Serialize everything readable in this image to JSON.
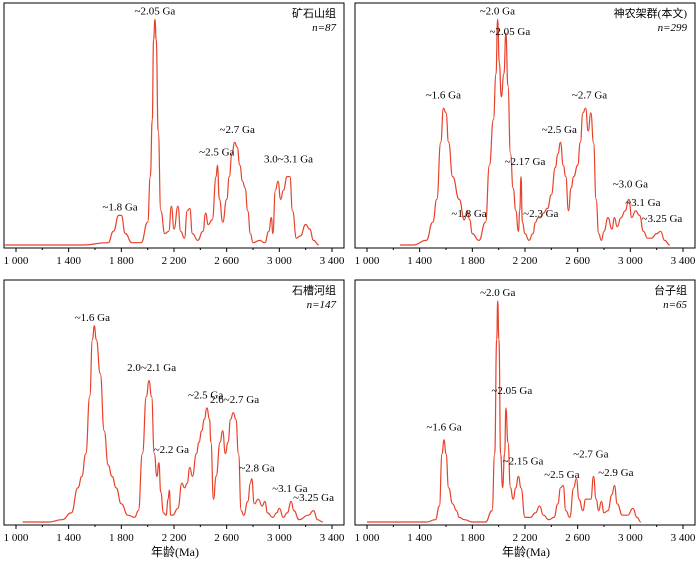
{
  "x_axis_label": "年龄(Ma)",
  "chart_data": [
    {
      "type": "area",
      "title": "矿石山组",
      "n": "n=87",
      "xlim": [
        1000,
        3400
      ],
      "xticks": [
        "1 000",
        "1 400",
        "1 800",
        "2 200",
        "2 600",
        "3 000",
        "3 400"
      ],
      "peaks": [
        [
          900,
          0
        ],
        [
          1500,
          0
        ],
        [
          1700,
          0.01
        ],
        [
          1740,
          0.06
        ],
        [
          1780,
          0.13
        ],
        [
          1800,
          0.13
        ],
        [
          1830,
          0.05
        ],
        [
          1880,
          0.01
        ],
        [
          1950,
          0.01
        ],
        [
          2000,
          0.1
        ],
        [
          2020,
          0.3
        ],
        [
          2035,
          0.55
        ],
        [
          2045,
          0.9
        ],
        [
          2055,
          0.99
        ],
        [
          2065,
          0.9
        ],
        [
          2080,
          0.5
        ],
        [
          2100,
          0.15
        ],
        [
          2130,
          0.05
        ],
        [
          2160,
          0.06
        ],
        [
          2180,
          0.17
        ],
        [
          2200,
          0.07
        ],
        [
          2230,
          0.17
        ],
        [
          2250,
          0.06
        ],
        [
          2280,
          0.03
        ],
        [
          2300,
          0.15
        ],
        [
          2320,
          0.16
        ],
        [
          2340,
          0.05
        ],
        [
          2380,
          0.02
        ],
        [
          2420,
          0.06
        ],
        [
          2440,
          0.14
        ],
        [
          2460,
          0.09
        ],
        [
          2490,
          0.11
        ],
        [
          2520,
          0.3
        ],
        [
          2530,
          0.35
        ],
        [
          2545,
          0.2
        ],
        [
          2570,
          0.1
        ],
        [
          2600,
          0.2
        ],
        [
          2620,
          0.3
        ],
        [
          2640,
          0.4
        ],
        [
          2660,
          0.45
        ],
        [
          2680,
          0.43
        ],
        [
          2700,
          0.35
        ],
        [
          2720,
          0.28
        ],
        [
          2740,
          0.25
        ],
        [
          2760,
          0.15
        ],
        [
          2780,
          0.05
        ],
        [
          2800,
          0.01
        ],
        [
          2850,
          0.02
        ],
        [
          2890,
          0.01
        ],
        [
          2920,
          0.06
        ],
        [
          2940,
          0.12
        ],
        [
          2950,
          0.05
        ],
        [
          2970,
          0.24
        ],
        [
          2990,
          0.28
        ],
        [
          3010,
          0.2
        ],
        [
          3030,
          0.24
        ],
        [
          3060,
          0.3
        ],
        [
          3080,
          0.3
        ],
        [
          3100,
          0.15
        ],
        [
          3130,
          0.03
        ],
        [
          3160,
          0.04
        ],
        [
          3200,
          0.09
        ],
        [
          3230,
          0.07
        ],
        [
          3260,
          0.02
        ],
        [
          3300,
          0
        ]
      ],
      "peak_labels": [
        {
          "text": "~2.05 Ga",
          "x": 2055,
          "y": 0.99
        },
        {
          "text": "~2.7 Ga",
          "x": 2680,
          "y": 0.47
        },
        {
          "text": "~2.5 Ga",
          "x": 2525,
          "y": 0.37
        },
        {
          "text": "3.0~3.1 Ga",
          "x": 3070,
          "y": 0.34
        },
        {
          "text": "~1.8 Ga",
          "x": 1790,
          "y": 0.13
        }
      ]
    },
    {
      "type": "area",
      "title": "神农架群(本文)",
      "n": "n=299",
      "xlim": [
        1000,
        3400
      ],
      "xticks": [
        "1 000",
        "1 400",
        "1 800",
        "2 200",
        "2 600",
        "3 000",
        "3 400"
      ],
      "peaks": [
        [
          1250,
          0
        ],
        [
          1350,
          0
        ],
        [
          1450,
          0.02
        ],
        [
          1500,
          0.1
        ],
        [
          1530,
          0.2
        ],
        [
          1560,
          0.45
        ],
        [
          1580,
          0.6
        ],
        [
          1600,
          0.58
        ],
        [
          1620,
          0.45
        ],
        [
          1650,
          0.3
        ],
        [
          1700,
          0.2
        ],
        [
          1740,
          0.11
        ],
        [
          1760,
          0.15
        ],
        [
          1780,
          0.11
        ],
        [
          1800,
          0.05
        ],
        [
          1850,
          0.02
        ],
        [
          1900,
          0.1
        ],
        [
          1930,
          0.35
        ],
        [
          1960,
          0.55
        ],
        [
          1980,
          0.75
        ],
        [
          1992,
          0.99
        ],
        [
          2005,
          0.8
        ],
        [
          2020,
          0.65
        ],
        [
          2040,
          0.75
        ],
        [
          2055,
          0.93
        ],
        [
          2070,
          0.7
        ],
        [
          2090,
          0.4
        ],
        [
          2110,
          0.25
        ],
        [
          2130,
          0.15
        ],
        [
          2150,
          0.06
        ],
        [
          2160,
          0.15
        ],
        [
          2170,
          0.3
        ],
        [
          2180,
          0.1
        ],
        [
          2200,
          0.05
        ],
        [
          2230,
          0.02
        ],
        [
          2260,
          0.05
        ],
        [
          2280,
          0.1
        ],
        [
          2300,
          0.12
        ],
        [
          2320,
          0.12
        ],
        [
          2340,
          0.14
        ],
        [
          2370,
          0.16
        ],
        [
          2400,
          0.22
        ],
        [
          2430,
          0.34
        ],
        [
          2450,
          0.4
        ],
        [
          2470,
          0.45
        ],
        [
          2490,
          0.35
        ],
        [
          2510,
          0.3
        ],
        [
          2530,
          0.15
        ],
        [
          2550,
          0.25
        ],
        [
          2570,
          0.3
        ],
        [
          2600,
          0.35
        ],
        [
          2620,
          0.45
        ],
        [
          2640,
          0.58
        ],
        [
          2660,
          0.6
        ],
        [
          2680,
          0.5
        ],
        [
          2700,
          0.58
        ],
        [
          2720,
          0.45
        ],
        [
          2740,
          0.2
        ],
        [
          2760,
          0.05
        ],
        [
          2780,
          0.02
        ],
        [
          2800,
          0.06
        ],
        [
          2830,
          0.12
        ],
        [
          2860,
          0.07
        ],
        [
          2880,
          0.12
        ],
        [
          2900,
          0.08
        ],
        [
          2930,
          0.12
        ],
        [
          2960,
          0.15
        ],
        [
          2990,
          0.2
        ],
        [
          3010,
          0.12
        ],
        [
          3040,
          0.15
        ],
        [
          3070,
          0.13
        ],
        [
          3100,
          0.06
        ],
        [
          3130,
          0.03
        ],
        [
          3160,
          0.03
        ],
        [
          3200,
          0.05
        ],
        [
          3230,
          0.06
        ],
        [
          3260,
          0.02
        ],
        [
          3300,
          0
        ]
      ],
      "peak_labels": [
        {
          "text": "~2.0 Ga",
          "x": 1990,
          "y": 0.99
        },
        {
          "text": "~2.05 Ga",
          "x": 2085,
          "y": 0.9
        },
        {
          "text": "~1.6 Ga",
          "x": 1580,
          "y": 0.62
        },
        {
          "text": "~2.7 Ga",
          "x": 2690,
          "y": 0.62
        },
        {
          "text": "~2.5 Ga",
          "x": 2460,
          "y": 0.47
        },
        {
          "text": "~2.17 Ga",
          "x": 2200,
          "y": 0.33
        },
        {
          "text": "~3.0 Ga",
          "x": 3000,
          "y": 0.23
        },
        {
          "text": "~1.8 Ga",
          "x": 1775,
          "y": 0.1
        },
        {
          "text": "~2.3 Ga",
          "x": 2320,
          "y": 0.1
        },
        {
          "text": "~3.1 Ga",
          "x": 3095,
          "y": 0.15
        },
        {
          "text": "~3.25 Ga",
          "x": 3240,
          "y": 0.08
        }
      ]
    },
    {
      "type": "area",
      "title": "石槽河组",
      "n": "n=147",
      "xlim": [
        1000,
        3400
      ],
      "xticks": [
        "1 000",
        "1 400",
        "1 800",
        "2 200",
        "2 600",
        "3 000",
        "3 400"
      ],
      "peaks": [
        [
          1050,
          0
        ],
        [
          1250,
          0
        ],
        [
          1350,
          0.01
        ],
        [
          1420,
          0.04
        ],
        [
          1470,
          0.15
        ],
        [
          1500,
          0.2
        ],
        [
          1530,
          0.3
        ],
        [
          1560,
          0.55
        ],
        [
          1580,
          0.8
        ],
        [
          1595,
          0.86
        ],
        [
          1610,
          0.8
        ],
        [
          1640,
          0.65
        ],
        [
          1670,
          0.4
        ],
        [
          1700,
          0.25
        ],
        [
          1730,
          0.2
        ],
        [
          1760,
          0.15
        ],
        [
          1800,
          0.08
        ],
        [
          1850,
          0.03
        ],
        [
          1900,
          0.02
        ],
        [
          1930,
          0.05
        ],
        [
          1960,
          0.3
        ],
        [
          1990,
          0.55
        ],
        [
          2010,
          0.62
        ],
        [
          2030,
          0.55
        ],
        [
          2050,
          0.3
        ],
        [
          2070,
          0.2
        ],
        [
          2085,
          0.26
        ],
        [
          2100,
          0.13
        ],
        [
          2120,
          0.04
        ],
        [
          2140,
          0.03
        ],
        [
          2155,
          0.1
        ],
        [
          2165,
          0.14
        ],
        [
          2175,
          0.03
        ],
        [
          2190,
          0.03
        ],
        [
          2230,
          0.06
        ],
        [
          2260,
          0.17
        ],
        [
          2280,
          0.15
        ],
        [
          2300,
          0.17
        ],
        [
          2320,
          0.24
        ],
        [
          2340,
          0.2
        ],
        [
          2370,
          0.3
        ],
        [
          2390,
          0.35
        ],
        [
          2410,
          0.4
        ],
        [
          2430,
          0.45
        ],
        [
          2450,
          0.5
        ],
        [
          2470,
          0.45
        ],
        [
          2480,
          0.35
        ],
        [
          2500,
          0.1
        ],
        [
          2520,
          0.2
        ],
        [
          2550,
          0.35
        ],
        [
          2570,
          0.4
        ],
        [
          2590,
          0.3
        ],
        [
          2610,
          0.35
        ],
        [
          2630,
          0.45
        ],
        [
          2650,
          0.48
        ],
        [
          2670,
          0.45
        ],
        [
          2690,
          0.3
        ],
        [
          2710,
          0.05
        ],
        [
          2730,
          0.03
        ],
        [
          2760,
          0.09
        ],
        [
          2780,
          0.17
        ],
        [
          2790,
          0.19
        ],
        [
          2810,
          0.08
        ],
        [
          2840,
          0.1
        ],
        [
          2870,
          0.07
        ],
        [
          2890,
          0.09
        ],
        [
          2910,
          0.04
        ],
        [
          2950,
          0.02
        ],
        [
          2980,
          0.04
        ],
        [
          3000,
          0.06
        ],
        [
          3030,
          0.02
        ],
        [
          3060,
          0.04
        ],
        [
          3090,
          0.09
        ],
        [
          3110,
          0.05
        ],
        [
          3150,
          0.01
        ],
        [
          3220,
          0.03
        ],
        [
          3260,
          0.05
        ],
        [
          3290,
          0.01
        ],
        [
          3330,
          0
        ]
      ],
      "peak_labels": [
        {
          "text": "~1.6 Ga",
          "x": 1580,
          "y": 0.86
        },
        {
          "text": "2.0~2.1 Ga",
          "x": 2030,
          "y": 0.64
        },
        {
          "text": "~2.5 Ga",
          "x": 2440,
          "y": 0.52
        },
        {
          "text": "2.6~2.7 Ga",
          "x": 2660,
          "y": 0.5
        },
        {
          "text": "~2.2 Ga",
          "x": 2180,
          "y": 0.28
        },
        {
          "text": "~2.8 Ga",
          "x": 2830,
          "y": 0.2
        },
        {
          "text": "~3.1 Ga",
          "x": 3080,
          "y": 0.11
        },
        {
          "text": "~3.25 Ga",
          "x": 3260,
          "y": 0.07
        }
      ]
    },
    {
      "type": "area",
      "title": "台子组",
      "n": "n=65",
      "xlim": [
        1000,
        3400
      ],
      "xticks": [
        "1 000",
        "1 400",
        "1 800",
        "2 200",
        "2 600",
        "3 000",
        "3 400"
      ],
      "peaks": [
        [
          1000,
          0
        ],
        [
          1450,
          0
        ],
        [
          1520,
          0.01
        ],
        [
          1550,
          0.07
        ],
        [
          1570,
          0.3
        ],
        [
          1585,
          0.36
        ],
        [
          1600,
          0.3
        ],
        [
          1620,
          0.15
        ],
        [
          1650,
          0.08
        ],
        [
          1680,
          0.05
        ],
        [
          1700,
          0.02
        ],
        [
          1740,
          0.01
        ],
        [
          1800,
          0
        ],
        [
          1900,
          0
        ],
        [
          1950,
          0.05
        ],
        [
          1970,
          0.3
        ],
        [
          1985,
          0.8
        ],
        [
          1993,
          0.97
        ],
        [
          2002,
          0.8
        ],
        [
          2015,
          0.3
        ],
        [
          2030,
          0.15
        ],
        [
          2045,
          0.3
        ],
        [
          2055,
          0.5
        ],
        [
          2070,
          0.35
        ],
        [
          2090,
          0.15
        ],
        [
          2110,
          0.1
        ],
        [
          2130,
          0.15
        ],
        [
          2150,
          0.2
        ],
        [
          2170,
          0.15
        ],
        [
          2200,
          0.02
        ],
        [
          2240,
          0.02
        ],
        [
          2280,
          0.04
        ],
        [
          2310,
          0.07
        ],
        [
          2340,
          0.03
        ],
        [
          2380,
          0.01
        ],
        [
          2420,
          0.02
        ],
        [
          2450,
          0.08
        ],
        [
          2470,
          0.15
        ],
        [
          2490,
          0.16
        ],
        [
          2510,
          0.05
        ],
        [
          2540,
          0.02
        ],
        [
          2570,
          0.15
        ],
        [
          2590,
          0.19
        ],
        [
          2610,
          0.1
        ],
        [
          2640,
          0.05
        ],
        [
          2660,
          0.1
        ],
        [
          2680,
          0.1
        ],
        [
          2700,
          0.1
        ],
        [
          2720,
          0.2
        ],
        [
          2740,
          0.1
        ],
        [
          2760,
          0.05
        ],
        [
          2780,
          0.09
        ],
        [
          2800,
          0.04
        ],
        [
          2830,
          0.05
        ],
        [
          2860,
          0.12
        ],
        [
          2880,
          0.16
        ],
        [
          2900,
          0.08
        ],
        [
          2940,
          0.03
        ],
        [
          2980,
          0.03
        ],
        [
          3020,
          0.06
        ],
        [
          3050,
          0.02
        ],
        [
          3080,
          0
        ]
      ],
      "peak_labels": [
        {
          "text": "~2.0 Ga",
          "x": 1993,
          "y": 0.97
        },
        {
          "text": "~2.05 Ga",
          "x": 2100,
          "y": 0.54
        },
        {
          "text": "~1.6 Ga",
          "x": 1585,
          "y": 0.38
        },
        {
          "text": "~2.15 Ga",
          "x": 2185,
          "y": 0.23
        },
        {
          "text": "~2.5 Ga",
          "x": 2480,
          "y": 0.17
        },
        {
          "text": "~2.7 Ga",
          "x": 2700,
          "y": 0.26
        },
        {
          "text": "~2.9 Ga",
          "x": 2890,
          "y": 0.18
        }
      ]
    }
  ]
}
